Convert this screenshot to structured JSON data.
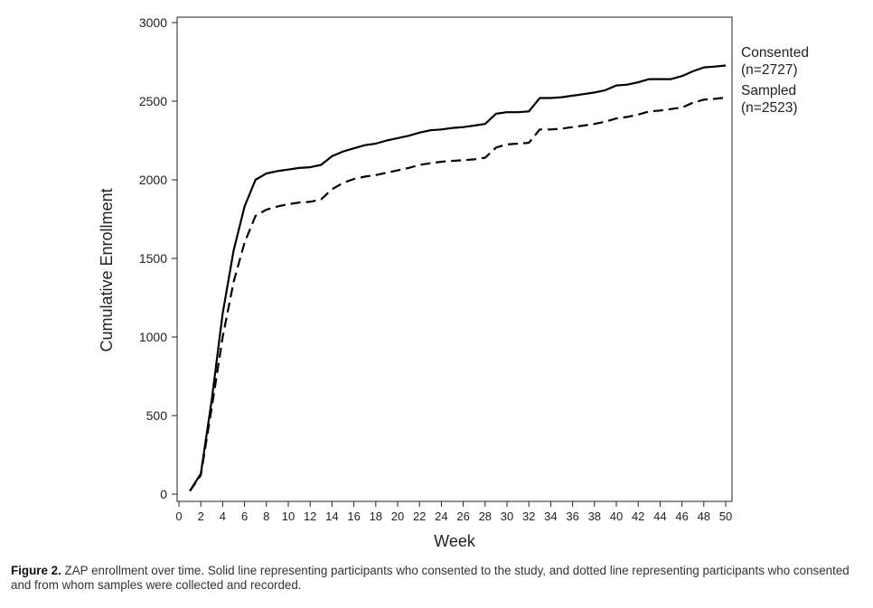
{
  "caption": {
    "label": "Figure 2.",
    "text": "ZAP enrollment over time. Solid line representing participants who consented to the study, and dotted line representing participants who consented and from whom samples were collected and recorded."
  },
  "chart_data": {
    "type": "line",
    "title": "",
    "xlabel": "Week",
    "ylabel": "Cumulative Enrollment",
    "xlim": [
      0,
      50
    ],
    "ylim": [
      0,
      3000
    ],
    "xticks": [
      0,
      2,
      4,
      6,
      8,
      10,
      12,
      14,
      16,
      18,
      20,
      22,
      24,
      26,
      28,
      30,
      32,
      34,
      36,
      38,
      40,
      42,
      44,
      46,
      48,
      50
    ],
    "yticks": [
      0,
      500,
      1000,
      1500,
      2000,
      2500,
      3000
    ],
    "grid": false,
    "series": [
      {
        "name": "Consented",
        "label_lines": [
          "Consented",
          "(n=2727)"
        ],
        "style": "solid",
        "color": "#000000",
        "x": [
          1,
          2,
          3,
          4,
          5,
          6,
          7,
          8,
          9,
          10,
          11,
          12,
          13,
          14,
          15,
          16,
          17,
          18,
          19,
          20,
          21,
          22,
          23,
          24,
          25,
          26,
          27,
          28,
          29,
          30,
          31,
          32,
          33,
          34,
          35,
          36,
          37,
          38,
          39,
          40,
          41,
          42,
          43,
          44,
          45,
          46,
          47,
          48,
          49,
          50
        ],
        "y": [
          20,
          130,
          600,
          1150,
          1550,
          1830,
          2000,
          2040,
          2055,
          2065,
          2075,
          2080,
          2095,
          2150,
          2180,
          2200,
          2220,
          2230,
          2250,
          2265,
          2280,
          2300,
          2315,
          2320,
          2330,
          2335,
          2345,
          2355,
          2420,
          2430,
          2430,
          2435,
          2520,
          2520,
          2525,
          2535,
          2545,
          2555,
          2570,
          2600,
          2605,
          2620,
          2640,
          2640,
          2640,
          2660,
          2690,
          2715,
          2720,
          2727
        ]
      },
      {
        "name": "Sampled",
        "label_lines": [
          "Sampled",
          "(n=2523)"
        ],
        "style": "dashed",
        "color": "#000000",
        "x": [
          1,
          2,
          3,
          4,
          5,
          6,
          7,
          8,
          9,
          10,
          11,
          12,
          13,
          14,
          15,
          16,
          17,
          18,
          19,
          20,
          21,
          22,
          23,
          24,
          25,
          26,
          27,
          28,
          29,
          30,
          31,
          32,
          33,
          34,
          35,
          36,
          37,
          38,
          39,
          40,
          41,
          42,
          43,
          44,
          45,
          46,
          47,
          48,
          49,
          50
        ],
        "y": [
          20,
          120,
          550,
          1000,
          1350,
          1600,
          1770,
          1810,
          1830,
          1845,
          1855,
          1860,
          1875,
          1940,
          1980,
          2005,
          2020,
          2030,
          2045,
          2060,
          2075,
          2095,
          2105,
          2115,
          2120,
          2125,
          2130,
          2140,
          2205,
          2225,
          2230,
          2235,
          2320,
          2320,
          2325,
          2335,
          2345,
          2355,
          2370,
          2390,
          2400,
          2415,
          2435,
          2440,
          2450,
          2460,
          2490,
          2510,
          2515,
          2523
        ]
      }
    ]
  }
}
